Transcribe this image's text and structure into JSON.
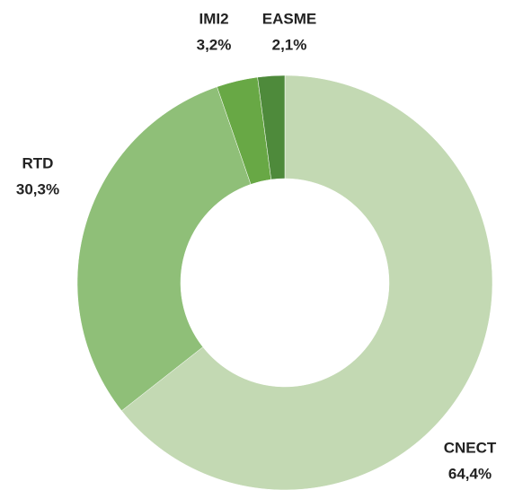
{
  "chart_data": {
    "type": "donut",
    "categories": [
      "CNECT",
      "RTD",
      "IMI2",
      "EASME"
    ],
    "values": [
      64.4,
      30.3,
      3.2,
      2.1
    ],
    "value_labels": [
      "64,4%",
      "30,3%",
      "3,2%",
      "2,1%"
    ],
    "colors": [
      "#c3d9b3",
      "#8fbf78",
      "#68a845",
      "#4e8a3b"
    ]
  }
}
